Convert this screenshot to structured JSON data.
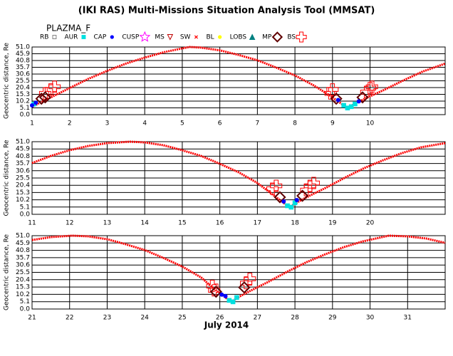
{
  "title": "(IKI RAS) Multi-Missions Situation Analysis Tool (MMSAT)",
  "subtitle": "PLAZMA_F",
  "legend": [
    {
      "name": "RB",
      "color": "#808080",
      "marker": "square-open"
    },
    {
      "name": "AUR",
      "color": "#00e0e0",
      "marker": "square"
    },
    {
      "name": "CAP",
      "color": "#0000ff",
      "marker": "dot"
    },
    {
      "name": "CUSP",
      "color": "#ff00ff",
      "marker": "star"
    },
    {
      "name": "MS",
      "color": "#c00000",
      "marker": "triangle-down"
    },
    {
      "name": "SW",
      "color": "#ff0000",
      "marker": "x"
    },
    {
      "name": "BL",
      "color": "#ffff00",
      "marker": "dot"
    },
    {
      "name": "LOBS",
      "color": "#008080",
      "marker": "triangle"
    },
    {
      "name": "MP",
      "color": "#600000",
      "marker": "diamond"
    },
    {
      "name": "BS",
      "color": "#ff0000",
      "marker": "cross"
    }
  ],
  "chart_data": [
    {
      "type": "scatter",
      "ylabel": "Geocentric distance, Re",
      "xlim": [
        1,
        12
      ],
      "xticks": [
        1,
        2,
        3,
        4,
        5,
        6,
        7,
        8,
        9,
        10
      ],
      "ylim": [
        0,
        51
      ],
      "yticks": [
        {
          "value": 0,
          "label": "0.0"
        },
        5.1,
        10.2,
        15.3,
        20.4,
        25.5,
        30.6,
        35.7,
        40.8,
        45.9,
        {
          "value": 51,
          "label": "51.0"
        }
      ],
      "grid": true,
      "series": [
        {
          "name": "SW",
          "color": "#ff0000",
          "marker": "x",
          "line": true,
          "x": [
            1.0,
            1.25,
            1.5,
            2,
            2.5,
            3,
            3.5,
            4,
            4.5,
            5,
            5.2,
            5.5,
            6,
            6.5,
            7,
            7.5,
            8,
            8.5,
            8.9,
            9.15,
            9.4,
            9.65,
            9.9,
            10.4,
            10.9,
            11.4,
            12
          ],
          "values": [
            6,
            9.5,
            13,
            20,
            27,
            33,
            38.5,
            43,
            47,
            50,
            51,
            50.5,
            48.5,
            45,
            41,
            35.5,
            29.5,
            22,
            15,
            10,
            5,
            9,
            12.5,
            19,
            26,
            32.5,
            38.5
          ]
        },
        {
          "name": "BS",
          "color": "#ff0000",
          "marker": "cross",
          "x": [
            1.35,
            1.5,
            1.6,
            8.95,
            9.0,
            9.9,
            10.0,
            10.05
          ],
          "values": [
            16,
            19,
            21,
            16,
            19,
            17,
            20,
            21
          ]
        },
        {
          "name": "MP",
          "color": "#600000",
          "marker": "diamond",
          "x": [
            1.25,
            1.35,
            9.1,
            9.8
          ],
          "values": [
            12,
            13,
            12,
            13
          ]
        },
        {
          "name": "AUR",
          "color": "#00e0e0",
          "marker": "square",
          "x": [
            1.05,
            9.3,
            9.4,
            9.5,
            9.6
          ],
          "values": [
            8,
            7,
            5,
            6,
            8
          ]
        },
        {
          "name": "CAP",
          "color": "#0000ff",
          "marker": "dot",
          "x": [
            1.0,
            1.1,
            9.15,
            9.7
          ],
          "values": [
            7,
            9,
            11,
            10
          ]
        }
      ]
    },
    {
      "type": "scatter",
      "ylabel": "Geocentric distance, Re",
      "xlim": [
        11,
        22
      ],
      "xticks": [
        11,
        12,
        13,
        14,
        15,
        16,
        17,
        18,
        19,
        20
      ],
      "ylim": [
        0,
        51
      ],
      "yticks": [
        {
          "value": 0,
          "label": "0.0"
        },
        5.1,
        10.2,
        15.3,
        20.4,
        25.5,
        30.6,
        35.7,
        40.8,
        45.9,
        {
          "value": 51,
          "label": "51.0"
        }
      ],
      "grid": true,
      "series": [
        {
          "name": "SW",
          "color": "#ff0000",
          "marker": "x",
          "line": true,
          "x": [
            11,
            11.5,
            12,
            12.5,
            13,
            13.6,
            14,
            14.5,
            15,
            15.5,
            16,
            16.5,
            17,
            17.35,
            17.6,
            17.85,
            18.1,
            18.35,
            18.85,
            19.35,
            19.85,
            20.35,
            20.85,
            21.35,
            22
          ],
          "values": [
            36,
            41,
            45,
            48,
            50,
            51,
            50.5,
            48.5,
            45,
            41,
            35.5,
            29.5,
            22,
            15,
            10,
            5,
            9,
            12.5,
            19,
            26,
            32.5,
            38,
            43,
            47,
            50
          ]
        },
        {
          "name": "BS",
          "color": "#ff0000",
          "marker": "cross",
          "x": [
            17.4,
            17.5,
            18.3,
            18.4,
            18.5
          ],
          "values": [
            18,
            20,
            17,
            20,
            22
          ]
        },
        {
          "name": "MP",
          "color": "#600000",
          "marker": "diamond",
          "x": [
            17.6,
            18.2
          ],
          "values": [
            12,
            13
          ]
        },
        {
          "name": "AUR",
          "color": "#00e0e0",
          "marker": "square",
          "x": [
            17.8,
            17.9,
            18.0
          ],
          "values": [
            6,
            5,
            8
          ]
        },
        {
          "name": "CAP",
          "color": "#0000ff",
          "marker": "dot",
          "x": [
            17.7,
            18.05
          ],
          "values": [
            9,
            10
          ]
        }
      ]
    },
    {
      "type": "scatter",
      "ylabel": "Geocentric distance, Re",
      "xlabel": "July 2014",
      "xlim": [
        21,
        32
      ],
      "xticks": [
        21,
        22,
        23,
        24,
        25,
        26,
        27,
        28,
        29,
        30,
        31
      ],
      "ylim": [
        0,
        51
      ],
      "yticks": [
        {
          "value": 0,
          "label": "0.0"
        },
        5.1,
        10.2,
        15.3,
        20.4,
        25.5,
        30.6,
        35.7,
        40.8,
        45.9,
        {
          "value": 51,
          "label": "51.0"
        }
      ],
      "grid": true,
      "series": [
        {
          "name": "SW",
          "color": "#ff0000",
          "marker": "x",
          "line": true,
          "x": [
            21,
            21.5,
            22.07,
            22.5,
            23,
            23.5,
            24,
            24.5,
            25,
            25.5,
            25.8,
            26.05,
            26.3,
            26.55,
            26.8,
            27.3,
            27.8,
            28.3,
            28.8,
            29.3,
            29.8,
            30.5,
            31,
            31.5,
            32
          ],
          "values": [
            48,
            50,
            51,
            50.5,
            48.5,
            45,
            41,
            35.5,
            29.5,
            22,
            15,
            10,
            5,
            9,
            12.5,
            19,
            26,
            32.5,
            38,
            43,
            47,
            51,
            50.5,
            49,
            46
          ]
        },
        {
          "name": "BS",
          "color": "#ff0000",
          "marker": "cross",
          "x": [
            25.8,
            25.85,
            26.7,
            26.8
          ],
          "values": [
            16,
            13,
            18,
            21
          ]
        },
        {
          "name": "MP",
          "color": "#600000",
          "marker": "diamond",
          "x": [
            25.9,
            26.65
          ],
          "values": [
            12,
            15
          ]
        },
        {
          "name": "AUR",
          "color": "#00e0e0",
          "marker": "square",
          "x": [
            26.25,
            26.35,
            26.45
          ],
          "values": [
            6,
            5,
            8
          ]
        },
        {
          "name": "CAP",
          "color": "#0000ff",
          "marker": "dot",
          "x": [
            26.05,
            26.15
          ],
          "values": [
            10,
            9
          ]
        }
      ]
    }
  ]
}
